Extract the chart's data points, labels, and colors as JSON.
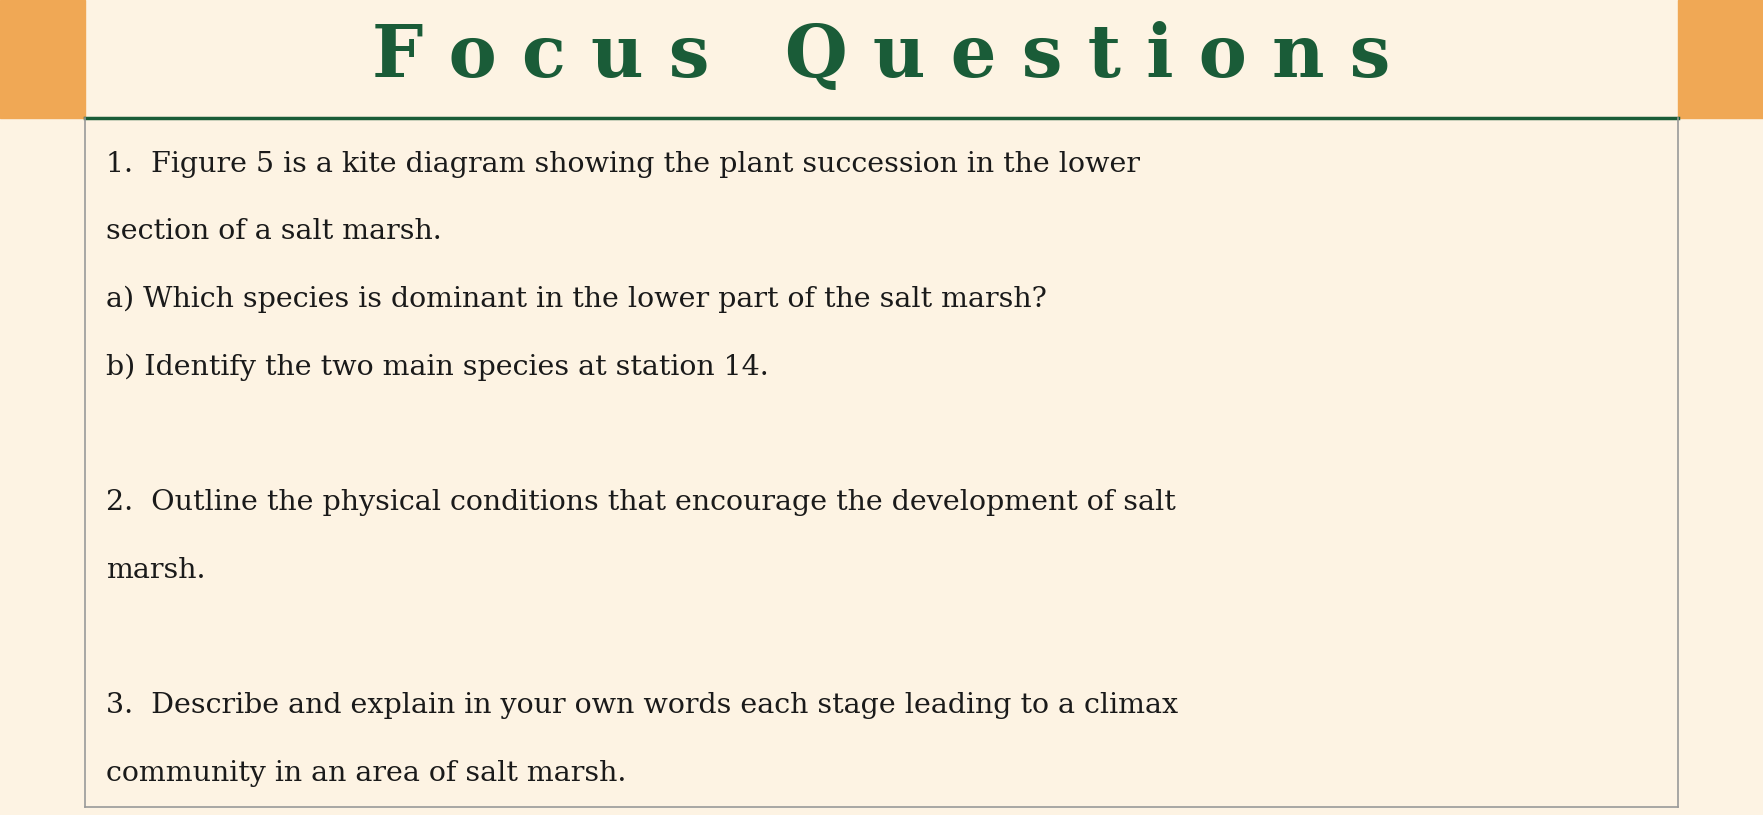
{
  "title": "F o c u s   Q u e s t i o n s",
  "title_font_size": 52,
  "title_color": "#1a5c38",
  "orange_block_color": "#f0a855",
  "content_bg_color": "#fdf3e3",
  "text_color": "#1a1a1a",
  "content_font_size": 20.5,
  "lines": [
    "1.  Figure 5 is a kite diagram showing the plant succession in the lower",
    "section of a salt marsh.",
    "a) Which species is dominant in the lower part of the salt marsh?",
    "b) Identify the two main species at station 14.",
    "",
    "2.  Outline the physical conditions that encourage the development of salt",
    "marsh.",
    "",
    "3.  Describe and explain in your own words each stage leading to a climax",
    "community in an area of salt marsh."
  ]
}
